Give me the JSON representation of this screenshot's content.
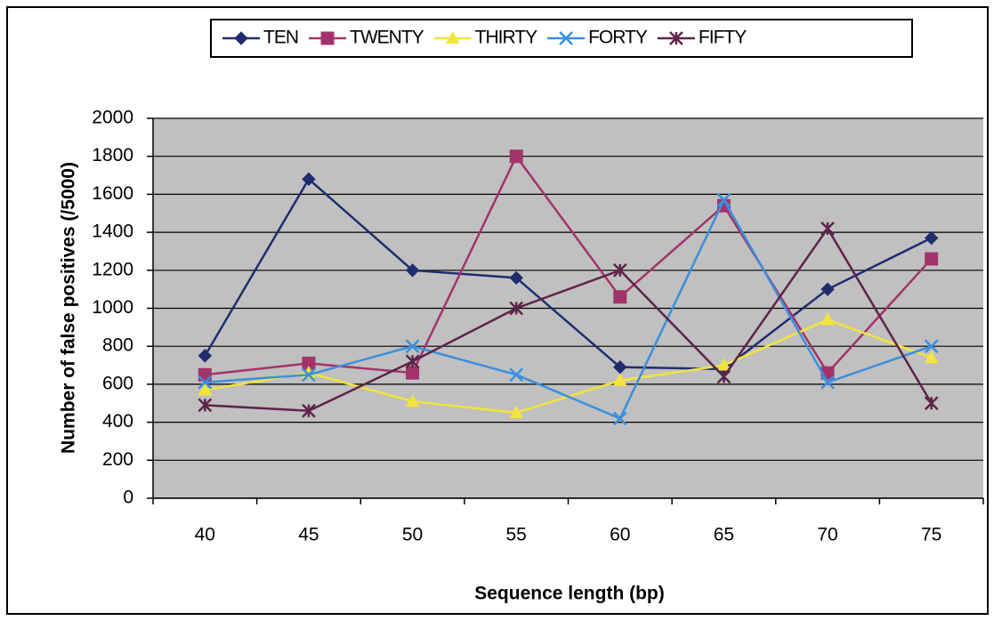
{
  "chart_data": {
    "type": "line",
    "x_label": "Sequence length (bp)",
    "y_label": "Number of false positives (/5000)",
    "categories": [
      "40",
      "45",
      "50",
      "55",
      "60",
      "65",
      "70",
      "75"
    ],
    "ylim": [
      0,
      2000
    ],
    "yticks": [
      0,
      200,
      400,
      600,
      800,
      1000,
      1200,
      1400,
      1600,
      1800,
      2000
    ],
    "grid": true,
    "legend": "top",
    "series": [
      {
        "name": "TEN",
        "color": "#1f2d6e",
        "marker": "diamond",
        "values": [
          750,
          1680,
          1200,
          1160,
          690,
          680,
          1100,
          1370
        ]
      },
      {
        "name": "TWENTY",
        "color": "#a3336b",
        "marker": "square",
        "values": [
          650,
          710,
          660,
          1800,
          1060,
          1540,
          660,
          1260
        ]
      },
      {
        "name": "THIRTY",
        "color": "#f2e43c",
        "marker": "triangle",
        "values": [
          570,
          660,
          510,
          450,
          620,
          700,
          940,
          740
        ]
      },
      {
        "name": "FORTY",
        "color": "#3b8fdc",
        "marker": "x",
        "values": [
          610,
          650,
          800,
          650,
          420,
          1570,
          610,
          800
        ]
      },
      {
        "name": "FIFTY",
        "color": "#5e2449",
        "marker": "star",
        "values": [
          490,
          460,
          720,
          1000,
          1200,
          640,
          1420,
          500
        ]
      }
    ]
  }
}
